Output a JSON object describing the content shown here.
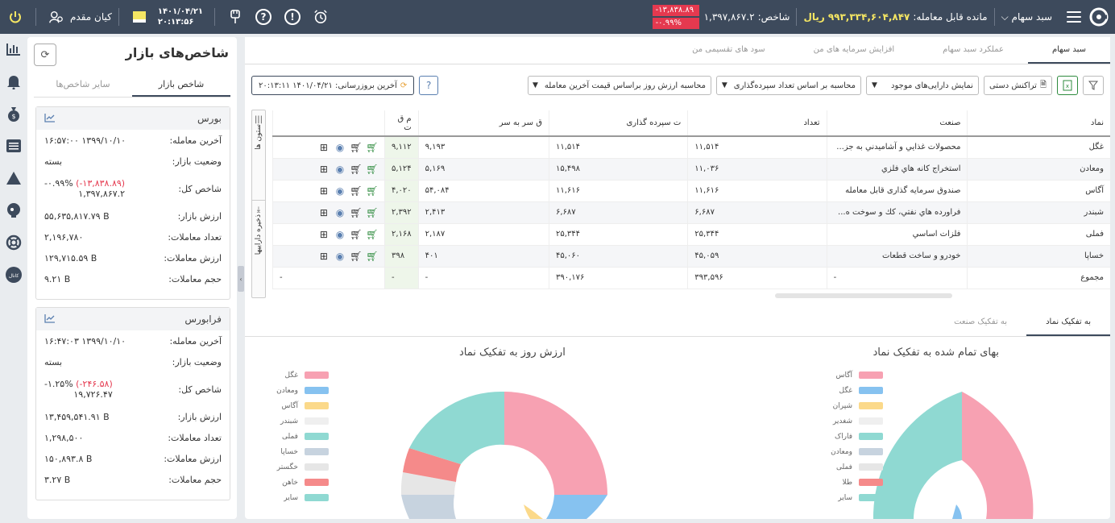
{
  "topbar": {
    "basket_label": "سبد سهام",
    "balance_label": "مانده قابل معامله:",
    "balance_value": "۹۹۳,۳۳۴,۶۰۴,۸۴۷",
    "balance_unit": "ریال",
    "index_label": "شاخص:",
    "index_value": "۱,۳۹۷,۸۶۷.۲",
    "index_change": "-۱۳,۸۳۸.۸۹",
    "index_change_pct": "-۰.۹۹%",
    "user_name": "کیان مقدم",
    "date": "۱۴۰۱/۰۴/۲۱",
    "time": "۲۰:۱۳:۵۶"
  },
  "side": {
    "title": "شاخص‌های بازار",
    "tabs": [
      "شاخص بازار",
      "سایر شاخص‌ها"
    ],
    "boxes": [
      {
        "name": "بورس",
        "rows": [
          {
            "label": "آخرین معامله:",
            "value": "۱۳۹۹/۱۰/۱۰ ۱۶:۵۷:۰۰"
          },
          {
            "label": "وضعیت بازار:",
            "value": "بسته"
          },
          {
            "label": "شاخص کل:",
            "value": "۱,۳۹۷,۸۶۷.۲",
            "change": "(-۱۳,۸۳۸.۸۹)",
            "pct": "-۰.۹۹%"
          },
          {
            "label": "ارزش بازار:",
            "value": "۵۵,۶۳۵,۸۱۷.۷۹ B"
          },
          {
            "label": "تعداد معاملات:",
            "value": "۲,۱۹۶,۷۸۰"
          },
          {
            "label": "ارزش معاملات:",
            "value": "۱۲۹,۷۱۵.۵۹ B"
          },
          {
            "label": "حجم معاملات:",
            "value": "۹.۲۱ B"
          }
        ]
      },
      {
        "name": "فرابورس",
        "rows": [
          {
            "label": "آخرین معامله:",
            "value": "۱۳۹۹/۱۰/۱۰ ۱۶:۴۷:۰۳"
          },
          {
            "label": "وضعیت بازار:",
            "value": "بسته"
          },
          {
            "label": "شاخص کل:",
            "value": "۱۹,۷۲۶.۴۷",
            "change": "(-۲۴۶.۵۸)",
            "pct": "-۱.۲۵%"
          },
          {
            "label": "ارزش بازار:",
            "value": "۱۳,۴۵۹,۵۴۱.۹۱ B"
          },
          {
            "label": "تعداد معاملات:",
            "value": "۱,۲۹۸,۵۰۰"
          },
          {
            "label": "ارزش معاملات:",
            "value": "۱۵۰,۸۹۳.۸ B"
          },
          {
            "label": "حجم معاملات:",
            "value": "۳.۲۷ B"
          }
        ]
      }
    ]
  },
  "main": {
    "tabs": [
      "سبد سهام",
      "عملکرد سبد سهام",
      "افزایش سرمایه های من",
      "سود های تقسیمی من"
    ],
    "toolbar": {
      "manual_tx": "تراکنش دستی",
      "show_assets": "نمایش دارایی‌های موجود",
      "calc_by": "محاسبه بر اساس تعداد سپرده‌گذاری",
      "calc_value": "محاسبه ارزش روز براساس قیمت آخرین معامله",
      "last_update": "آخرین بروزرسانی: ۱۴۰۱/۰۴/۲۱ ۲۰:۱۳:۱۱"
    },
    "side_tools": [
      "ستون ها",
      "ذخیره داراییها"
    ],
    "columns": [
      "نماد",
      "صنعت",
      "تعداد",
      "ت سپرده گذاری",
      "ق سر به سر",
      "م ق ت"
    ],
    "rows": [
      {
        "symbol": "غگل",
        "industry": "محصولات غذایي و آشاميدني به جز...",
        "qty": "۱۱,۵۱۴",
        "dep": "۱۱,۵۱۴",
        "be": "۹,۱۹۳",
        "last": "۹,۱۱۲"
      },
      {
        "symbol": "ومعادن",
        "industry": "استخراج کانه هاي فلزي",
        "qty": "۱۱,۰۳۶",
        "dep": "۱۵,۴۹۸",
        "be": "۵,۱۶۹",
        "last": "۵,۱۲۴"
      },
      {
        "symbol": "آگاس",
        "industry": "صندوق سرمایه گذاری قابل معامله",
        "qty": "۱۱,۶۱۶",
        "dep": "۱۱,۶۱۶",
        "be": "۵۴,۰۸۴",
        "last": "۴,۰۲۰"
      },
      {
        "symbol": "شبندر",
        "industry": "فراورده هاي نفتي، كك و سوخت ه...",
        "qty": "۶,۶۸۷",
        "dep": "۶,۶۸۷",
        "be": "۲,۴۱۳",
        "last": "۲,۳۹۲"
      },
      {
        "symbol": "فملی",
        "industry": "فلزات اساسي",
        "qty": "۲۵,۳۴۴",
        "dep": "۲۵,۳۴۴",
        "be": "۲,۱۸۷",
        "last": "۲,۱۶۸"
      },
      {
        "symbol": "خساپا",
        "industry": "خودرو و ساخت قطعات",
        "qty": "۴۵,۰۵۹",
        "dep": "۴۵,۰۶۰",
        "be": "۴۰۱",
        "last": "۳۹۸"
      }
    ],
    "total": {
      "label": "مجموع",
      "industry": "-",
      "qty": "۳۹۳,۵۹۶",
      "dep": "۳۹۰,۱۷۶",
      "be": "-",
      "last": "-",
      "extra": "-"
    },
    "lower_tabs": [
      "به تفکیک نماد",
      "به تفکیک صنعت"
    ]
  },
  "charts": [
    {
      "title": "بهای تمام شده به تفکیک نماد",
      "legend": [
        {
          "name": "آگاس",
          "color": "#f7a1b2"
        },
        {
          "name": "غگل",
          "color": "#86c2f0"
        },
        {
          "name": "شپران",
          "color": "#fbd98a"
        },
        {
          "name": "شغدیر",
          "color": "#efefef"
        },
        {
          "name": "فاراک",
          "color": "#8fd9d2"
        },
        {
          "name": "ومعادن",
          "color": "#c7d3df"
        },
        {
          "name": "فملی",
          "color": "#e6e6e6"
        },
        {
          "name": "طلا",
          "color": "#f58a8a"
        },
        {
          "name": "سایر",
          "color": "#8fd9d2"
        }
      ]
    },
    {
      "title": "ارزش روز به تفکیک نماد",
      "legend": [
        {
          "name": "غگل",
          "color": "#f7a1b2"
        },
        {
          "name": "ومعادن",
          "color": "#86c2f0"
        },
        {
          "name": "آگاس",
          "color": "#fbd98a"
        },
        {
          "name": "شبندر",
          "color": "#efefef"
        },
        {
          "name": "فملی",
          "color": "#8fd9d2"
        },
        {
          "name": "خساپا",
          "color": "#c7d3df"
        },
        {
          "name": "خگستر",
          "color": "#e6e6e6"
        },
        {
          "name": "خاهن",
          "color": "#f58a8a"
        },
        {
          "name": "سایر",
          "color": "#8fd9d2"
        }
      ]
    }
  ]
}
